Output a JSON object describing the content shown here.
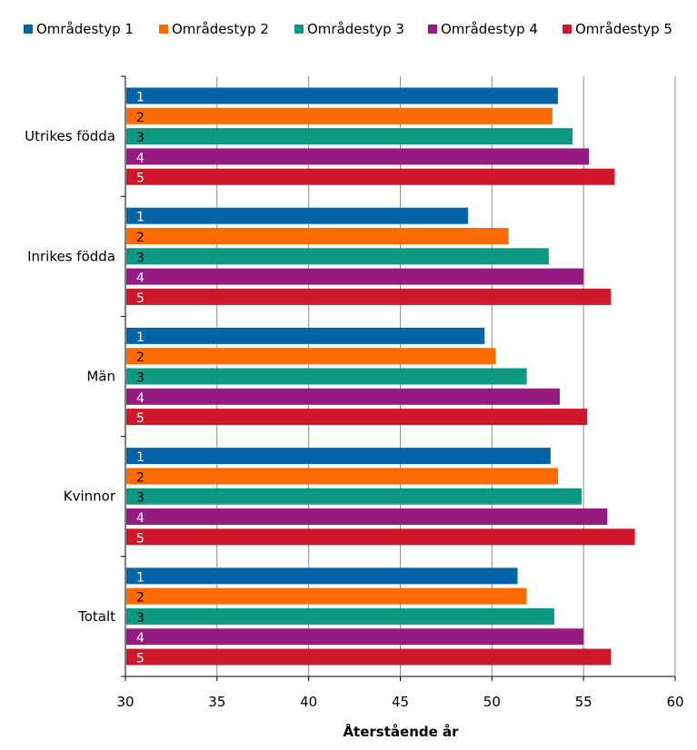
{
  "chart_data": {
    "type": "bar",
    "orientation": "horizontal",
    "categories": [
      "Utrikes födda",
      "Inrikes födda",
      "Män",
      "Kvinnor",
      "Totalt"
    ],
    "series": [
      {
        "name": "Områdestyp 1",
        "bar_label": "1",
        "color": "#0563a8",
        "label_color": "#ffffff",
        "values": [
          53.6,
          48.7,
          49.6,
          53.2,
          51.4
        ]
      },
      {
        "name": "Områdestyp 2",
        "bar_label": "2",
        "color": "#ff6a00",
        "label_color": "#000000",
        "values": [
          53.3,
          50.9,
          50.2,
          53.6,
          51.9
        ]
      },
      {
        "name": "Områdestyp 3",
        "bar_label": "3",
        "color": "#0e9783",
        "label_color": "#000000",
        "values": [
          54.4,
          53.1,
          51.9,
          54.9,
          53.4
        ]
      },
      {
        "name": "Områdestyp 4",
        "bar_label": "4",
        "color": "#951b81",
        "label_color": "#ffffff",
        "values": [
          55.3,
          55.0,
          53.7,
          56.3,
          55.0
        ]
      },
      {
        "name": "Områdestyp 5",
        "bar_label": "5",
        "color": "#d0182c",
        "label_color": "#ffffff",
        "values": [
          56.7,
          56.5,
          55.2,
          57.8,
          56.5
        ]
      }
    ],
    "xlim": [
      30,
      60
    ],
    "xticks": [
      30,
      35,
      40,
      45,
      50,
      55,
      60
    ],
    "xlabel": "Återstående år",
    "ylabel": "",
    "title": "",
    "grid": "vertical",
    "legend_position": "top"
  }
}
